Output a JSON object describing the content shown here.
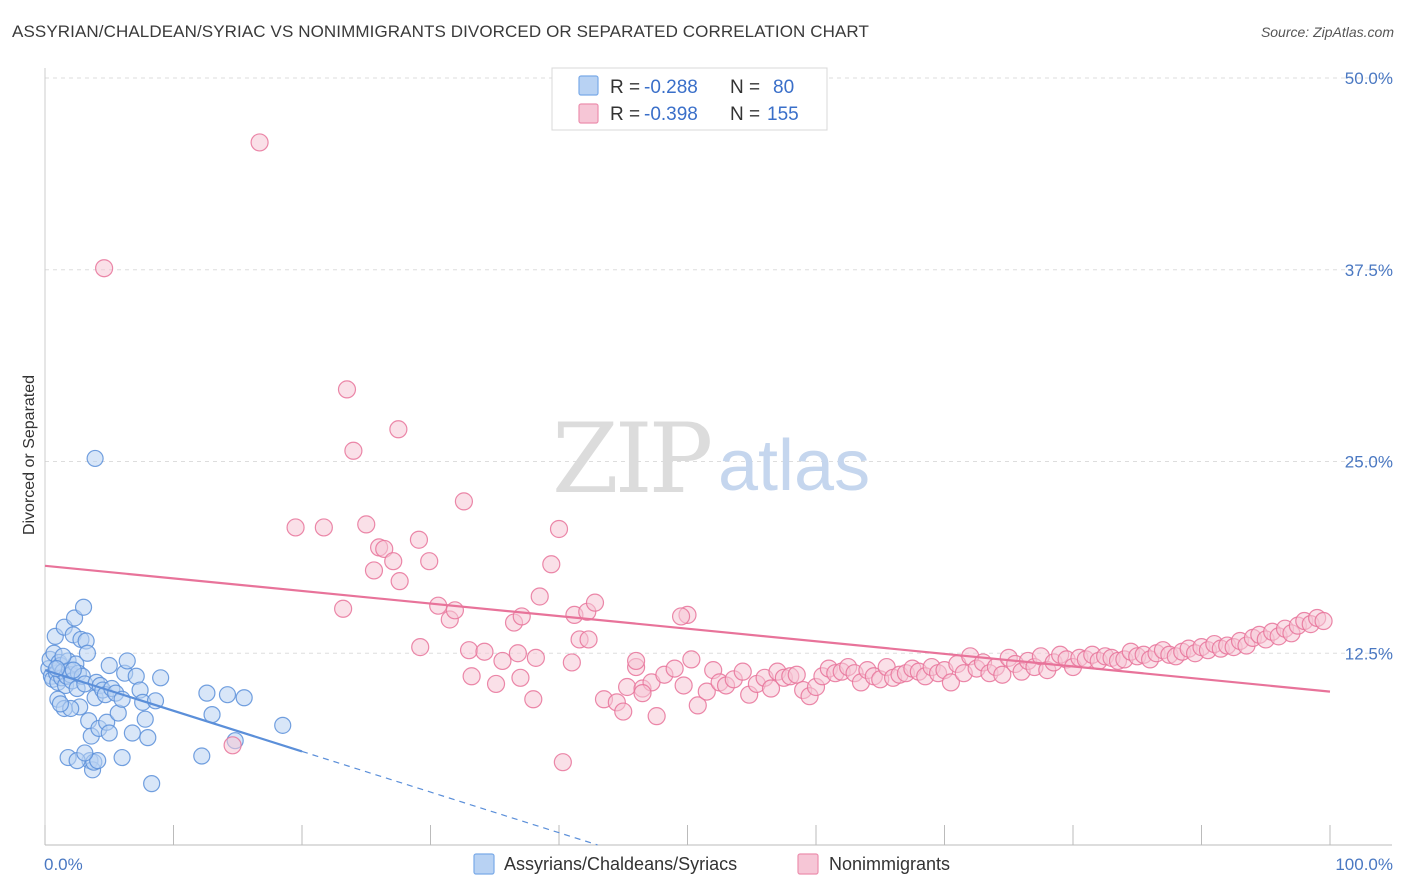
{
  "title": "ASSYRIAN/CHALDEAN/SYRIAC VS NONIMMIGRANTS DIVORCED OR SEPARATED CORRELATION CHART",
  "source": "Source: ZipAtlas.com",
  "watermark": {
    "zip": "ZIP",
    "atlas": "atlas"
  },
  "legend": {
    "r_label": "R =",
    "n_label": "N =",
    "rows": [
      {
        "r": "-0.288",
        "n": "80",
        "color": "#7aaae8",
        "fill": "#b8d2f3"
      },
      {
        "r": "-0.398",
        "n": "155",
        "color": "#ec8fae",
        "fill": "#f6c6d6"
      }
    ]
  },
  "bottom_legend": [
    {
      "label": "Assyrians/Chaldeans/Syriacs",
      "color": "#7aaae8",
      "fill": "#b8d2f3"
    },
    {
      "label": "Nonimmigrants",
      "color": "#ec8fae",
      "fill": "#f6c6d6"
    }
  ],
  "chart_data": {
    "type": "scatter",
    "title": "ASSYRIAN/CHALDEAN/SYRIAC VS NONIMMIGRANTS DIVORCED OR SEPARATED CORRELATION CHART",
    "xlabel": "",
    "ylabel": "Divorced or Separated",
    "xlim": [
      0,
      100
    ],
    "ylim": [
      0,
      50
    ],
    "x_tick_labels": [
      "0.0%",
      "100.0%"
    ],
    "y_ticks": [
      12.5,
      25.0,
      37.5,
      50.0
    ],
    "y_tick_labels": [
      "12.5%",
      "25.0%",
      "37.5%",
      "50.0%"
    ],
    "grid": "horizontal dashed",
    "series": [
      {
        "name": "Assyrians/Chaldeans/Syriacs",
        "color": "#5b8fd9",
        "fill": "#b8d2f3",
        "trend": {
          "x": [
            0,
            20
          ],
          "y": [
            11.4,
            6.1
          ],
          "dashed_extension_to_x": 43
        },
        "points": [
          [
            0.3,
            11.5
          ],
          [
            0.4,
            12.1
          ],
          [
            0.5,
            11.0
          ],
          [
            0.6,
            10.8
          ],
          [
            0.7,
            12.5
          ],
          [
            0.8,
            13.6
          ],
          [
            0.9,
            11.2
          ],
          [
            1.0,
            10.6
          ],
          [
            1.1,
            11.9
          ],
          [
            1.2,
            11.7
          ],
          [
            1.3,
            10.9
          ],
          [
            1.4,
            11.3
          ],
          [
            1.5,
            14.2
          ],
          [
            1.6,
            10.4
          ],
          [
            1.7,
            11.0
          ],
          [
            1.8,
            12.0
          ],
          [
            1.9,
            11.4
          ],
          [
            2.0,
            11.1
          ],
          [
            2.1,
            10.7
          ],
          [
            2.2,
            13.7
          ],
          [
            2.3,
            14.8
          ],
          [
            2.4,
            11.8
          ],
          [
            2.5,
            10.2
          ],
          [
            2.6,
            11.2
          ],
          [
            2.7,
            9.0
          ],
          [
            2.8,
            13.4
          ],
          [
            2.9,
            11.0
          ],
          [
            3.0,
            15.5
          ],
          [
            3.1,
            10.5
          ],
          [
            3.2,
            13.3
          ],
          [
            3.3,
            12.5
          ],
          [
            3.4,
            8.1
          ],
          [
            3.5,
            5.5
          ],
          [
            3.6,
            7.1
          ],
          [
            3.7,
            4.9
          ],
          [
            3.8,
            5.4
          ],
          [
            3.9,
            9.6
          ],
          [
            4.0,
            10.6
          ],
          [
            4.1,
            5.5
          ],
          [
            4.2,
            7.6
          ],
          [
            4.3,
            10.4
          ],
          [
            4.5,
            10.1
          ],
          [
            4.7,
            9.8
          ],
          [
            4.8,
            8.0
          ],
          [
            5.0,
            11.7
          ],
          [
            5.2,
            10.2
          ],
          [
            5.5,
            9.9
          ],
          [
            5.7,
            8.6
          ],
          [
            6.0,
            9.5
          ],
          [
            6.2,
            11.2
          ],
          [
            6.4,
            12.0
          ],
          [
            6.8,
            7.3
          ],
          [
            7.1,
            11.0
          ],
          [
            7.4,
            10.1
          ],
          [
            7.6,
            9.3
          ],
          [
            7.8,
            8.2
          ],
          [
            8.0,
            7.0
          ],
          [
            8.3,
            4.0
          ],
          [
            8.6,
            9.4
          ],
          [
            9.0,
            10.9
          ],
          [
            3.9,
            25.2
          ],
          [
            1.0,
            9.5
          ],
          [
            1.5,
            8.9
          ],
          [
            2.0,
            8.9
          ],
          [
            12.2,
            5.8
          ],
          [
            12.6,
            9.9
          ],
          [
            13.0,
            8.5
          ],
          [
            14.2,
            9.8
          ],
          [
            14.8,
            6.8
          ],
          [
            15.5,
            9.6
          ],
          [
            18.5,
            7.8
          ],
          [
            1.8,
            5.7
          ],
          [
            2.5,
            5.5
          ],
          [
            3.1,
            6.0
          ],
          [
            5.0,
            7.3
          ],
          [
            6.0,
            5.7
          ],
          [
            2.2,
            11.4
          ],
          [
            1.4,
            12.3
          ],
          [
            0.9,
            11.5
          ],
          [
            1.2,
            9.2
          ]
        ]
      },
      {
        "name": "Nonimmigrants",
        "color": "#e8739a",
        "fill": "#f6c6d6",
        "trend": {
          "x": [
            0,
            100
          ],
          "y": [
            18.2,
            10.0
          ]
        },
        "points": [
          [
            16.7,
            45.8
          ],
          [
            4.6,
            37.6
          ],
          [
            23.5,
            29.7
          ],
          [
            27.5,
            27.1
          ],
          [
            24.0,
            25.7
          ],
          [
            32.6,
            22.4
          ],
          [
            19.5,
            20.7
          ],
          [
            21.7,
            20.7
          ],
          [
            25.0,
            20.9
          ],
          [
            26.0,
            19.4
          ],
          [
            26.4,
            19.3
          ],
          [
            29.1,
            19.9
          ],
          [
            40.0,
            20.6
          ],
          [
            27.1,
            18.5
          ],
          [
            29.9,
            18.5
          ],
          [
            39.4,
            18.3
          ],
          [
            25.6,
            17.9
          ],
          [
            27.6,
            17.2
          ],
          [
            38.5,
            16.2
          ],
          [
            23.2,
            15.4
          ],
          [
            30.6,
            15.6
          ],
          [
            31.5,
            14.7
          ],
          [
            31.9,
            15.3
          ],
          [
            36.5,
            14.5
          ],
          [
            37.1,
            14.9
          ],
          [
            41.2,
            15.0
          ],
          [
            42.2,
            15.2
          ],
          [
            42.8,
            15.8
          ],
          [
            50.0,
            15.0
          ],
          [
            41.6,
            13.4
          ],
          [
            29.2,
            12.9
          ],
          [
            33.0,
            12.7
          ],
          [
            34.2,
            12.6
          ],
          [
            35.1,
            10.5
          ],
          [
            35.6,
            12.0
          ],
          [
            38.2,
            12.2
          ],
          [
            41.0,
            11.9
          ],
          [
            43.5,
            9.5
          ],
          [
            44.5,
            9.3
          ],
          [
            45.3,
            10.3
          ],
          [
            45.0,
            8.7
          ],
          [
            46.0,
            11.6
          ],
          [
            46.5,
            10.2
          ],
          [
            47.2,
            10.6
          ],
          [
            47.6,
            8.4
          ],
          [
            48.2,
            11.1
          ],
          [
            49.0,
            11.5
          ],
          [
            49.7,
            10.4
          ],
          [
            50.3,
            12.1
          ],
          [
            50.8,
            9.1
          ],
          [
            51.5,
            10.0
          ],
          [
            52.0,
            11.4
          ],
          [
            52.5,
            10.6
          ],
          [
            53.0,
            10.4
          ],
          [
            53.6,
            10.8
          ],
          [
            54.3,
            11.3
          ],
          [
            54.8,
            9.8
          ],
          [
            55.4,
            10.5
          ],
          [
            56.0,
            10.9
          ],
          [
            56.5,
            10.2
          ],
          [
            57.0,
            11.3
          ],
          [
            57.5,
            10.9
          ],
          [
            58.0,
            11.0
          ],
          [
            58.5,
            11.1
          ],
          [
            59.0,
            10.1
          ],
          [
            59.5,
            9.7
          ],
          [
            60.0,
            10.3
          ],
          [
            60.5,
            11.0
          ],
          [
            61.0,
            11.5
          ],
          [
            61.5,
            11.2
          ],
          [
            62.0,
            11.3
          ],
          [
            62.5,
            11.6
          ],
          [
            63.0,
            11.2
          ],
          [
            63.5,
            10.6
          ],
          [
            64.0,
            11.4
          ],
          [
            64.5,
            11.0
          ],
          [
            65.0,
            10.8
          ],
          [
            65.5,
            11.6
          ],
          [
            66.0,
            10.9
          ],
          [
            66.5,
            11.1
          ],
          [
            67.0,
            11.2
          ],
          [
            67.5,
            11.5
          ],
          [
            68.0,
            11.3
          ],
          [
            68.5,
            11.0
          ],
          [
            69.0,
            11.6
          ],
          [
            69.5,
            11.2
          ],
          [
            70.0,
            11.4
          ],
          [
            70.5,
            10.6
          ],
          [
            71.0,
            11.8
          ],
          [
            71.5,
            11.2
          ],
          [
            72.0,
            12.3
          ],
          [
            72.5,
            11.5
          ],
          [
            73.0,
            11.9
          ],
          [
            73.5,
            11.2
          ],
          [
            74.0,
            11.6
          ],
          [
            74.5,
            11.1
          ],
          [
            75.0,
            12.2
          ],
          [
            75.5,
            11.8
          ],
          [
            76.0,
            11.3
          ],
          [
            76.5,
            12.0
          ],
          [
            77.0,
            11.6
          ],
          [
            77.5,
            12.3
          ],
          [
            78.0,
            11.4
          ],
          [
            78.5,
            11.9
          ],
          [
            79.0,
            12.4
          ],
          [
            79.5,
            12.1
          ],
          [
            80.0,
            11.6
          ],
          [
            80.5,
            12.2
          ],
          [
            81.0,
            12.1
          ],
          [
            81.5,
            12.4
          ],
          [
            82.0,
            12.0
          ],
          [
            82.5,
            12.3
          ],
          [
            83.0,
            12.2
          ],
          [
            83.5,
            12.0
          ],
          [
            84.0,
            12.1
          ],
          [
            84.5,
            12.6
          ],
          [
            85.0,
            12.3
          ],
          [
            85.5,
            12.4
          ],
          [
            86.0,
            12.1
          ],
          [
            86.5,
            12.5
          ],
          [
            87.0,
            12.7
          ],
          [
            87.5,
            12.4
          ],
          [
            88.0,
            12.3
          ],
          [
            88.5,
            12.6
          ],
          [
            89.0,
            12.8
          ],
          [
            89.5,
            12.5
          ],
          [
            90.0,
            12.9
          ],
          [
            90.5,
            12.7
          ],
          [
            91.0,
            13.1
          ],
          [
            91.5,
            12.8
          ],
          [
            92.0,
            13.0
          ],
          [
            92.5,
            12.9
          ],
          [
            93.0,
            13.3
          ],
          [
            93.5,
            13.0
          ],
          [
            94.0,
            13.5
          ],
          [
            94.5,
            13.7
          ],
          [
            95.0,
            13.4
          ],
          [
            95.5,
            13.9
          ],
          [
            96.0,
            13.6
          ],
          [
            96.5,
            14.1
          ],
          [
            97.0,
            13.8
          ],
          [
            97.5,
            14.3
          ],
          [
            98.0,
            14.6
          ],
          [
            98.5,
            14.4
          ],
          [
            99.0,
            14.8
          ],
          [
            99.5,
            14.6
          ],
          [
            42.3,
            13.4
          ],
          [
            46.5,
            9.9
          ],
          [
            40.3,
            5.4
          ],
          [
            14.6,
            6.5
          ],
          [
            33.2,
            11.0
          ],
          [
            38.0,
            9.5
          ],
          [
            37.0,
            10.9
          ],
          [
            36.8,
            12.5
          ],
          [
            46.0,
            12.0
          ],
          [
            49.5,
            14.9
          ]
        ]
      }
    ]
  }
}
